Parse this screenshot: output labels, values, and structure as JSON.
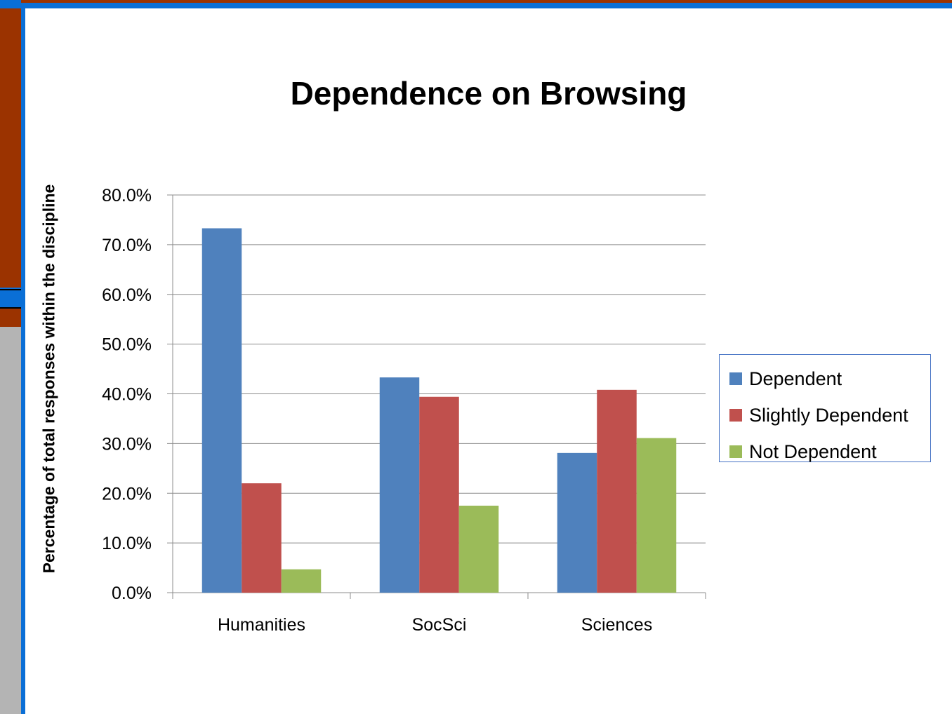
{
  "chart_data": {
    "type": "bar",
    "title": "Dependence on Browsing",
    "ylabel": "Percentage of total responses within the discipline",
    "xlabel": "",
    "categories": [
      "Humanities",
      "SocSci",
      "Sciences"
    ],
    "ylim": [
      0,
      80
    ],
    "yticks": [
      "0.0%",
      "10.0%",
      "20.0%",
      "30.0%",
      "40.0%",
      "50.0%",
      "60.0%",
      "70.0%",
      "80.0%"
    ],
    "grid": true,
    "legend_position": "right",
    "series": [
      {
        "name": "Dependent",
        "color": "#4f81bd",
        "values": [
          73.3,
          43.3,
          28.1
        ]
      },
      {
        "name": "Slightly Dependent",
        "color": "#c0504d",
        "values": [
          22.0,
          39.4,
          40.8
        ]
      },
      {
        "name": "Not Dependent",
        "color": "#9bbb59",
        "values": [
          4.7,
          17.5,
          31.1
        ]
      }
    ]
  }
}
